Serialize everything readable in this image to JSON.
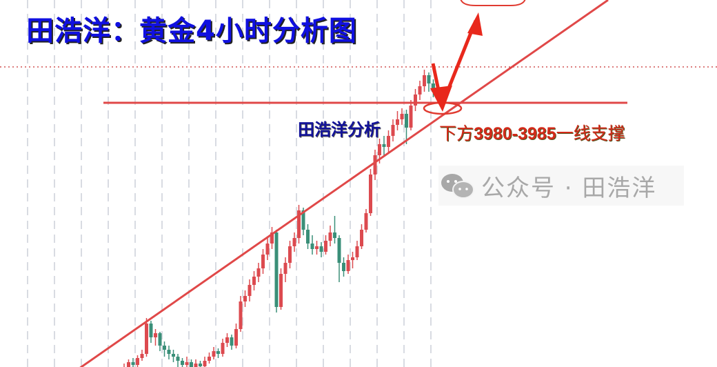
{
  "title": "田浩洋：黄金4小时分析图",
  "author_label": "田浩洋分析",
  "support_note": {
    "prefix": "下方",
    "range": "3980-3985",
    "suffix": "一线支撑"
  },
  "watermark": {
    "icon": "wechat-icon",
    "text": "公众号 · 田浩洋"
  },
  "colors": {
    "up": "#dc4a4f",
    "down": "#3a8f78",
    "annotation": "#e03a30",
    "title": "#1010e0"
  },
  "chart_data": {
    "type": "candlestick",
    "title": "田浩洋：黄金4小时分析图",
    "support_level": 3982,
    "grid": "vertical dashed",
    "candles": [
      [
        3788,
        3793,
        3786,
        3790
      ],
      [
        3790,
        3796,
        3788,
        3794
      ],
      [
        3794,
        3797,
        3790,
        3792
      ],
      [
        3792,
        3799,
        3790,
        3797
      ],
      [
        3797,
        3803,
        3795,
        3800
      ],
      [
        3800,
        3826,
        3798,
        3822
      ],
      [
        3822,
        3824,
        3808,
        3812
      ],
      [
        3812,
        3818,
        3806,
        3815
      ],
      [
        3815,
        3816,
        3802,
        3806
      ],
      [
        3806,
        3809,
        3798,
        3803
      ],
      [
        3803,
        3806,
        3796,
        3800
      ],
      [
        3800,
        3803,
        3794,
        3798
      ],
      [
        3798,
        3800,
        3790,
        3795
      ],
      [
        3795,
        3797,
        3788,
        3792
      ],
      [
        3792,
        3798,
        3790,
        3794
      ],
      [
        3794,
        3796,
        3787,
        3790
      ],
      [
        3790,
        3796,
        3788,
        3793
      ],
      [
        3793,
        3795,
        3788,
        3791
      ],
      [
        3791,
        3798,
        3789,
        3795
      ],
      [
        3795,
        3801,
        3793,
        3798
      ],
      [
        3798,
        3805,
        3796,
        3802
      ],
      [
        3802,
        3804,
        3797,
        3800
      ],
      [
        3800,
        3811,
        3798,
        3808
      ],
      [
        3808,
        3815,
        3805,
        3812
      ],
      [
        3812,
        3814,
        3803,
        3806
      ],
      [
        3806,
        3822,
        3804,
        3818
      ],
      [
        3818,
        3842,
        3816,
        3838
      ],
      [
        3838,
        3846,
        3834,
        3842
      ],
      [
        3842,
        3854,
        3838,
        3850
      ],
      [
        3850,
        3860,
        3846,
        3856
      ],
      [
        3856,
        3866,
        3852,
        3862
      ],
      [
        3862,
        3876,
        3858,
        3872
      ],
      [
        3872,
        3884,
        3868,
        3880
      ],
      [
        3880,
        3892,
        3876,
        3888
      ],
      [
        3888,
        3890,
        3830,
        3834
      ],
      [
        3834,
        3862,
        3832,
        3858
      ],
      [
        3858,
        3870,
        3852,
        3866
      ],
      [
        3866,
        3882,
        3862,
        3878
      ],
      [
        3878,
        3888,
        3874,
        3884
      ],
      [
        3884,
        3908,
        3880,
        3904
      ],
      [
        3904,
        3906,
        3886,
        3890
      ],
      [
        3890,
        3894,
        3876,
        3880
      ],
      [
        3880,
        3886,
        3872,
        3876
      ],
      [
        3876,
        3882,
        3872,
        3878
      ],
      [
        3878,
        3881,
        3870,
        3874
      ],
      [
        3874,
        3886,
        3872,
        3882
      ],
      [
        3882,
        3893,
        3878,
        3888
      ],
      [
        3888,
        3900,
        3880,
        3884
      ],
      [
        3884,
        3886,
        3852,
        3866
      ],
      [
        3866,
        3870,
        3856,
        3860
      ],
      [
        3860,
        3872,
        3858,
        3868
      ],
      [
        3868,
        3874,
        3862,
        3870
      ],
      [
        3870,
        3882,
        3868,
        3878
      ],
      [
        3878,
        3894,
        3876,
        3890
      ],
      [
        3890,
        3905,
        3888,
        3902
      ],
      [
        3902,
        3934,
        3900,
        3930
      ],
      [
        3930,
        3948,
        3926,
        3944
      ],
      [
        3944,
        3956,
        3938,
        3952
      ],
      [
        3952,
        3958,
        3944,
        3950
      ],
      [
        3950,
        3962,
        3946,
        3958
      ],
      [
        3958,
        3970,
        3954,
        3966
      ],
      [
        3966,
        3976,
        3962,
        3970
      ],
      [
        3970,
        3978,
        3966,
        3974
      ],
      [
        3974,
        3977,
        3952,
        3964
      ],
      [
        3964,
        3984,
        3962,
        3980
      ],
      [
        3980,
        3992,
        3976,
        3988
      ],
      [
        3988,
        3998,
        3984,
        3994
      ],
      [
        3994,
        4006,
        3990,
        4002
      ],
      [
        4002,
        4004,
        3990,
        3996
      ],
      [
        3996,
        3999,
        3986,
        3990
      ]
    ]
  }
}
